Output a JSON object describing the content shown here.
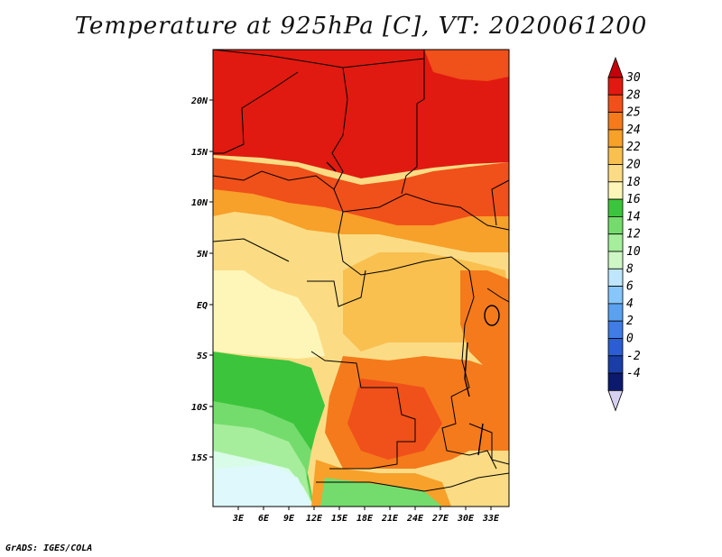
{
  "title": "Temperature at 925hPa [C], VT: 2020061200",
  "credit": "GrADS: IGES/COLA",
  "map": {
    "lat_ticks": [
      "20N",
      "15N",
      "10N",
      "5N",
      "EQ",
      "5S",
      "10S",
      "15S"
    ],
    "lon_ticks": [
      "3E",
      "6E",
      "9E",
      "12E",
      "15E",
      "18E",
      "21E",
      "24E",
      "27E",
      "30E",
      "33E"
    ]
  },
  "colorbar": {
    "labels": [
      "30",
      "28",
      "25",
      "24",
      "22",
      "20",
      "18",
      "16",
      "14",
      "12",
      "10",
      "8",
      "6",
      "4",
      "2",
      "0",
      "-2",
      "-4"
    ],
    "colors": [
      "#e01a10",
      "#f0501a",
      "#f47a1c",
      "#f7a02a",
      "#f9c050",
      "#fbdc84",
      "#fdf6b8",
      "#3cc53c",
      "#74dc6c",
      "#a6ee9c",
      "#cff7c6",
      "#bfe6fc",
      "#86c6fa",
      "#5aa2f0",
      "#3f7ce4",
      "#2a5ed2",
      "#1a3ea6",
      "#0c1a6e"
    ],
    "top_color": "#c4000a",
    "bottom_color": "#d8d0f0"
  }
}
